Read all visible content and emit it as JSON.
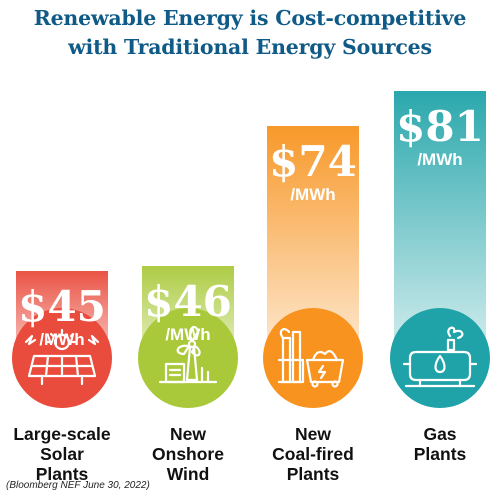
{
  "title_line1": "Renewable Energy is Cost-competitive",
  "title_line2": "with Traditional Energy Sources",
  "source": "(Bloomberg NEF June 30, 2022)",
  "chart_data": {
    "type": "bar",
    "categories": [
      "Large-scale Solar Plants",
      "New Onshore Wind",
      "New Coal-fired Plants",
      "Gas Plants"
    ],
    "category_lines": [
      [
        "Large-scale",
        "Solar",
        "Plants"
      ],
      [
        "New",
        "Onshore",
        "Wind"
      ],
      [
        "New",
        "Coal-fired",
        "Plants"
      ],
      [
        "Gas",
        "Plants"
      ]
    ],
    "values": [
      45,
      46,
      74,
      81
    ],
    "value_labels": [
      "$45",
      "$46",
      "$74",
      "$81"
    ],
    "unit": "/MWh",
    "colors": [
      "#e94b3c",
      "#a9c93a",
      "#f7931e",
      "#1fa3a8"
    ],
    "icons": [
      "solar-panel-icon",
      "wind-turbine-icon",
      "coal-plant-icon",
      "gas-plant-icon"
    ]
  }
}
